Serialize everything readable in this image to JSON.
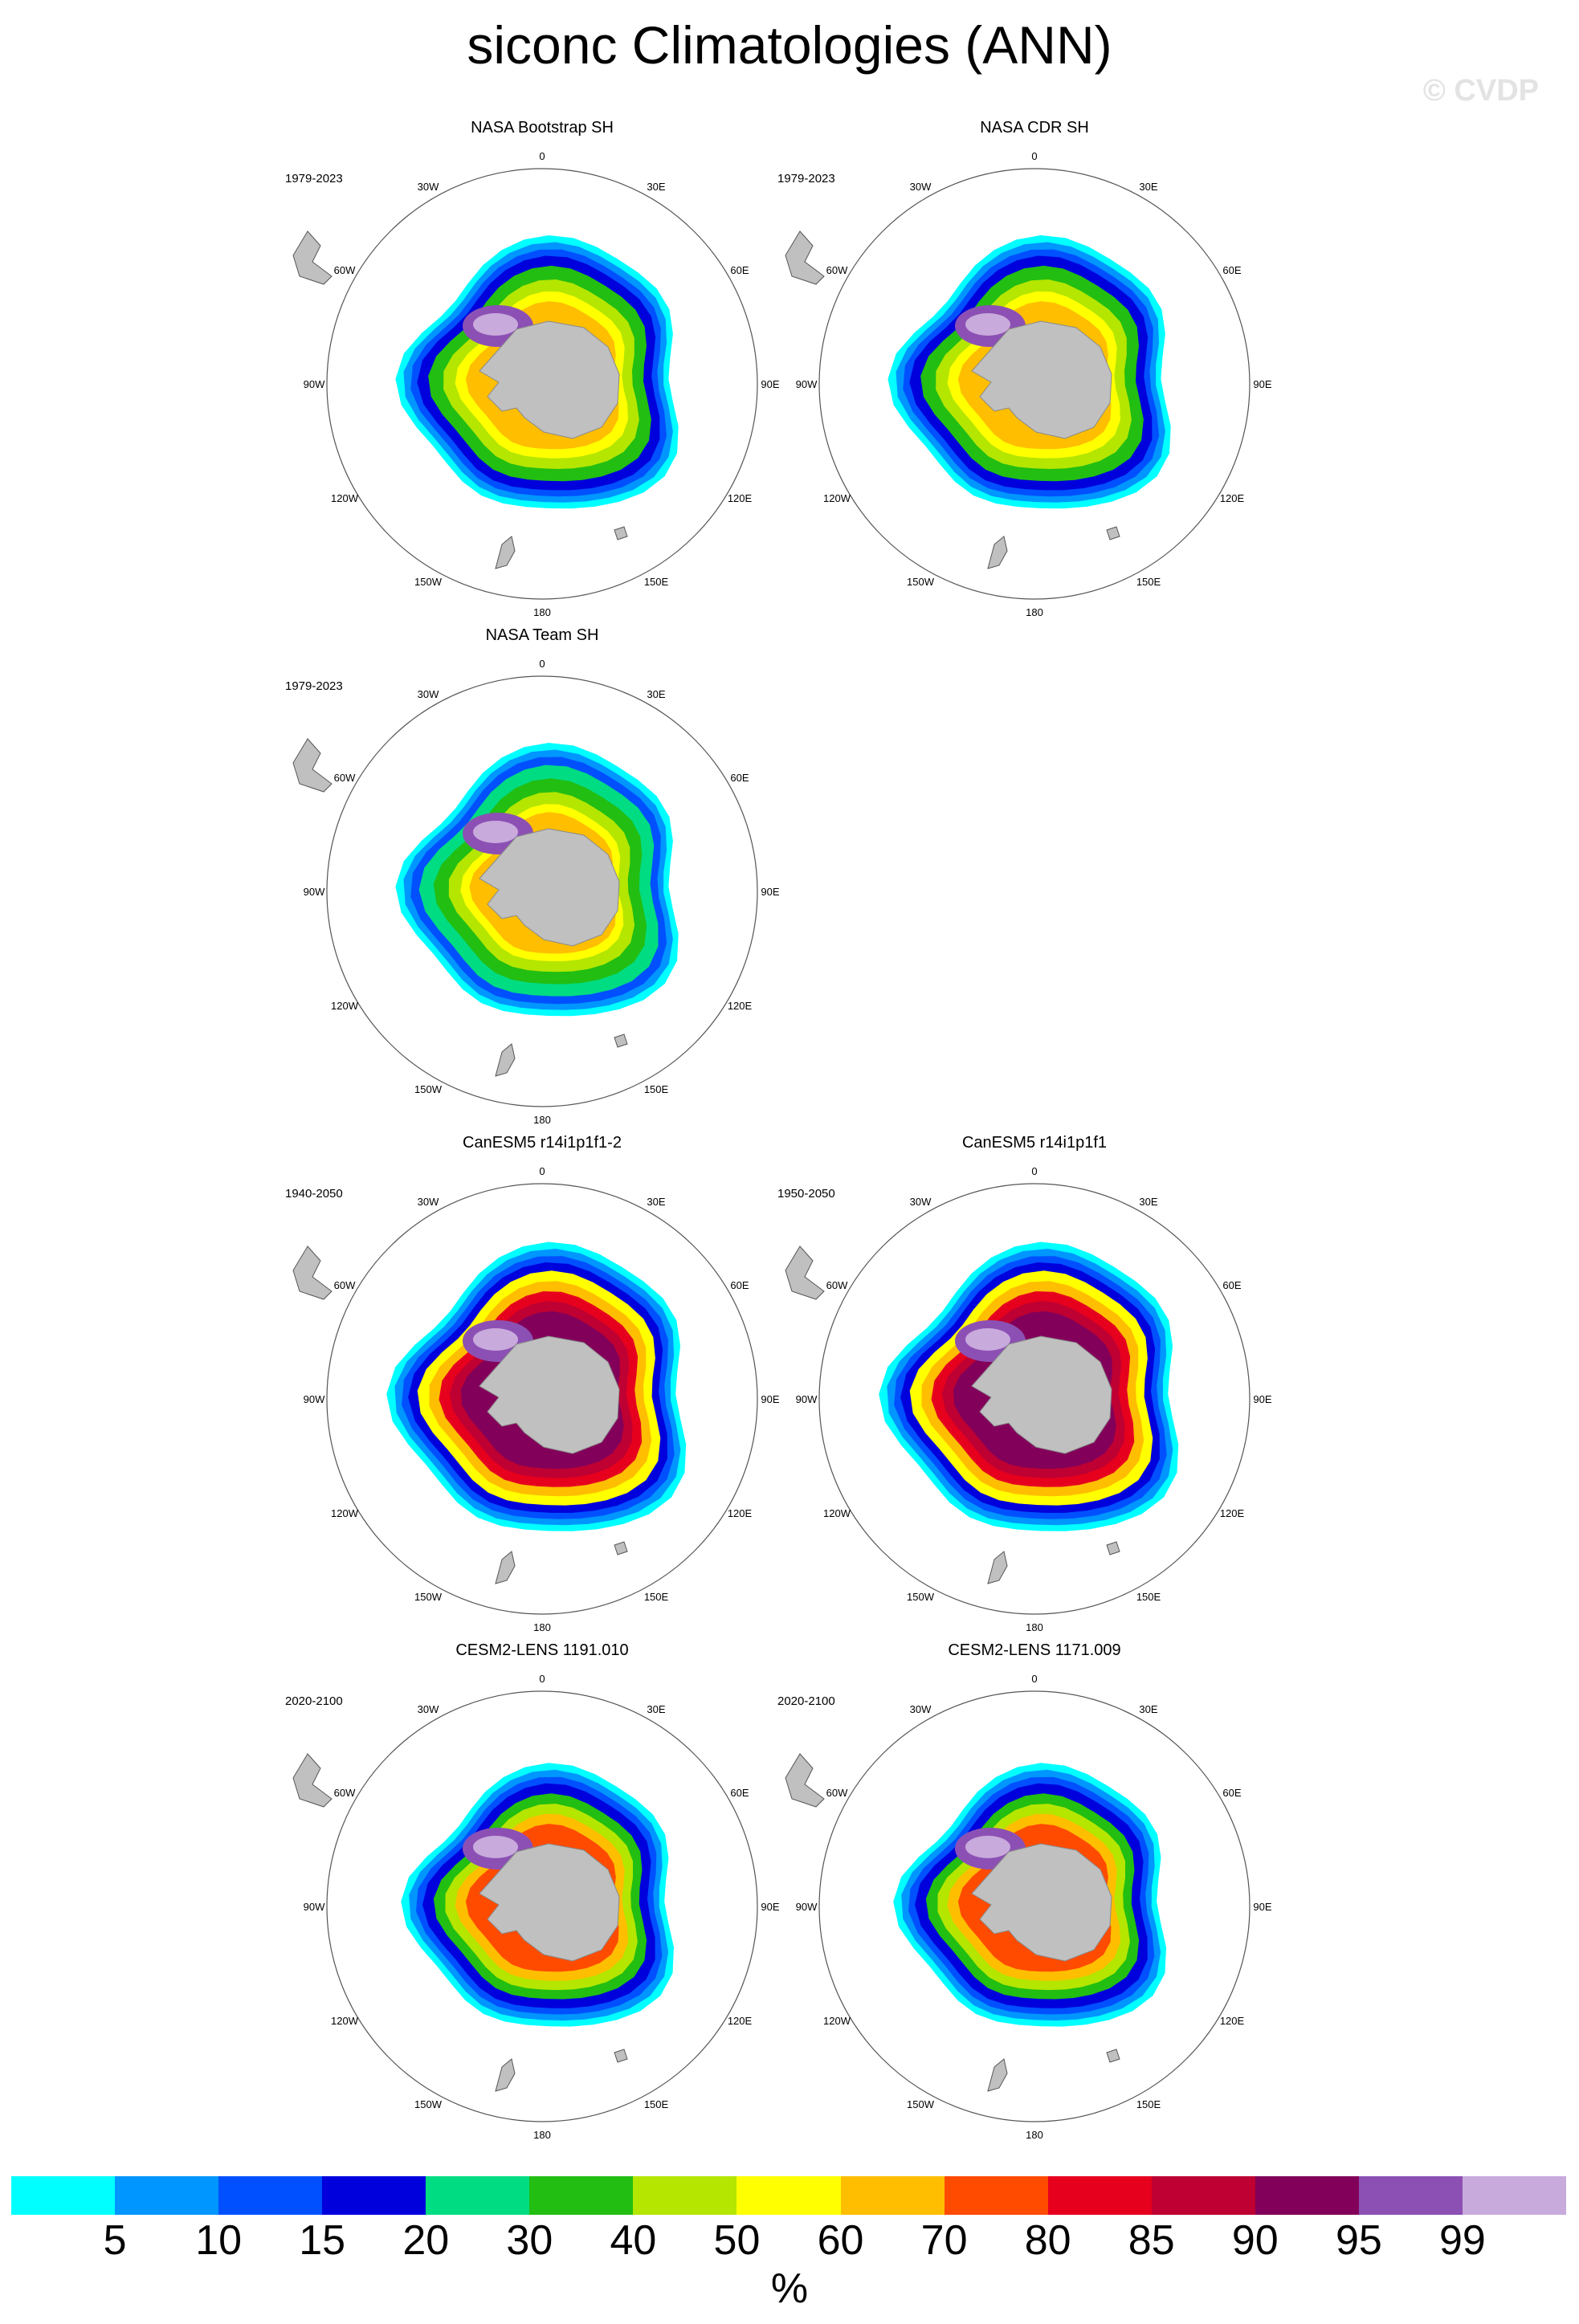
{
  "title": "siconc Climatologies (ANN)",
  "watermark": "© CVDP",
  "panels": [
    {
      "title": "NASA Bootstrap SH",
      "period": "1979-2023",
      "variant": "obs"
    },
    {
      "title": "NASA CDR SH",
      "period": "1979-2023",
      "variant": "obs"
    },
    {
      "title": "NASA Team SH",
      "period": "1979-2023",
      "variant": "team"
    },
    {
      "title": "CanESM5 r14i1p1f1-2",
      "period": "1940-2050",
      "variant": "canesm"
    },
    {
      "title": "CanESM5 r14i1p1f1",
      "period": "1950-2050",
      "variant": "canesm"
    },
    {
      "title": "CESM2-LENS 1191.010",
      "period": "2020-2100",
      "variant": "cesm"
    },
    {
      "title": "CESM2-LENS 1171.009",
      "period": "2020-2100",
      "variant": "cesm"
    }
  ],
  "map_labels": {
    "lon_labels": [
      "0",
      "30E",
      "60E",
      "90E",
      "120E",
      "150E",
      "180",
      "150W",
      "120W",
      "90W",
      "60W",
      "30W"
    ]
  },
  "colorbar": {
    "colors": [
      "#00ffff",
      "#0096ff",
      "#0050ff",
      "#0000dc",
      "#00dc82",
      "#22be12",
      "#b4e600",
      "#ffff00",
      "#ffbe00",
      "#ff4b00",
      "#e6001e",
      "#be0032",
      "#82005a",
      "#8c50b4",
      "#c8aadc"
    ],
    "labels": [
      "5",
      "10",
      "15",
      "20",
      "30",
      "40",
      "50",
      "60",
      "70",
      "80",
      "85",
      "90",
      "95",
      "99"
    ],
    "units": "%"
  }
}
